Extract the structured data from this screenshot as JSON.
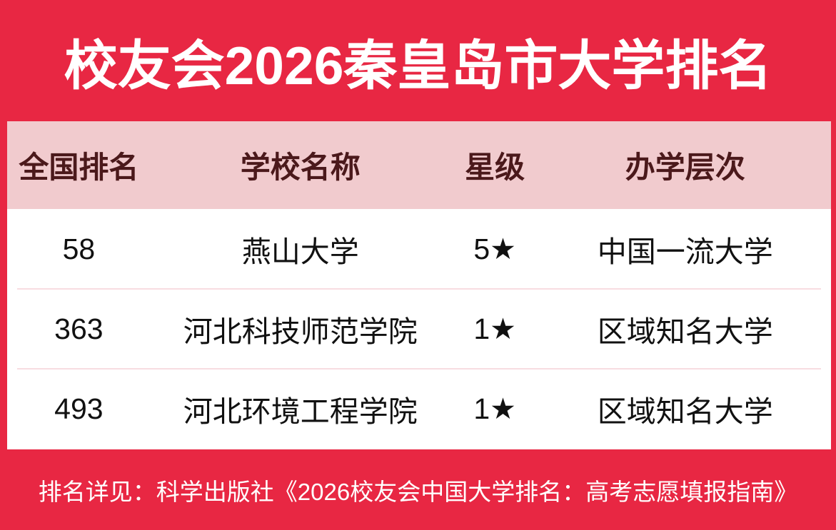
{
  "colors": {
    "red": "#E82743",
    "pink-header": "#F1CBCE",
    "header-text": "#4B191B",
    "row-divider": "#F8DDE1",
    "title-text": "#FFFFFF",
    "body-text": "#111111"
  },
  "header": {
    "title": "校友会2026秦皇岛市大学排名"
  },
  "chart_data": {
    "type": "table",
    "title": "校友会2026秦皇岛市大学排名",
    "columns": [
      "全国排名",
      "学校名称",
      "星级",
      "办学层次"
    ],
    "rows": [
      [
        "58",
        "燕山大学",
        "5★",
        "中国一流大学"
      ],
      [
        "363",
        "河北科技师范学院",
        "1★",
        "区域知名大学"
      ],
      [
        "493",
        "河北环境工程学院",
        "1★",
        "区域知名大学"
      ]
    ]
  },
  "footer": {
    "note": "排名详见：科学出版社《2026校友会中国大学排名：高考志愿填报指南》"
  }
}
